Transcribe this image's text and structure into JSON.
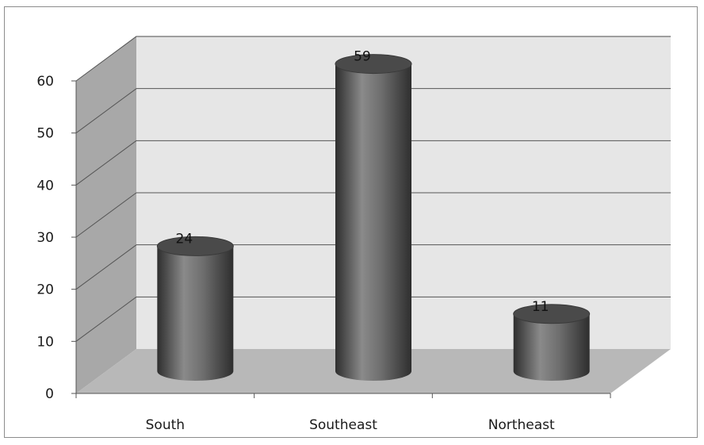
{
  "chart_data": {
    "type": "bar",
    "style": "3d-cylinder",
    "categories": [
      "South",
      "Southeast",
      "Northeast"
    ],
    "values": [
      24,
      59,
      11
    ],
    "data_labels": [
      "24",
      "59",
      "11"
    ],
    "yticks": [
      "0",
      "10",
      "20",
      "30",
      "40",
      "50",
      "60"
    ],
    "ylim": [
      0,
      60
    ],
    "grid": true,
    "legend": "none",
    "colors": {
      "bar_dark": "#2e2e2e",
      "bar_mid": "#6e6e6e",
      "bar_light": "#8a8a8a",
      "bar_top": "#4a4a4a",
      "back_wall": "#e6e6e6",
      "side_wall": "#a8a8a8",
      "floor": "#b8b8b8",
      "gridline": "#555555"
    }
  }
}
